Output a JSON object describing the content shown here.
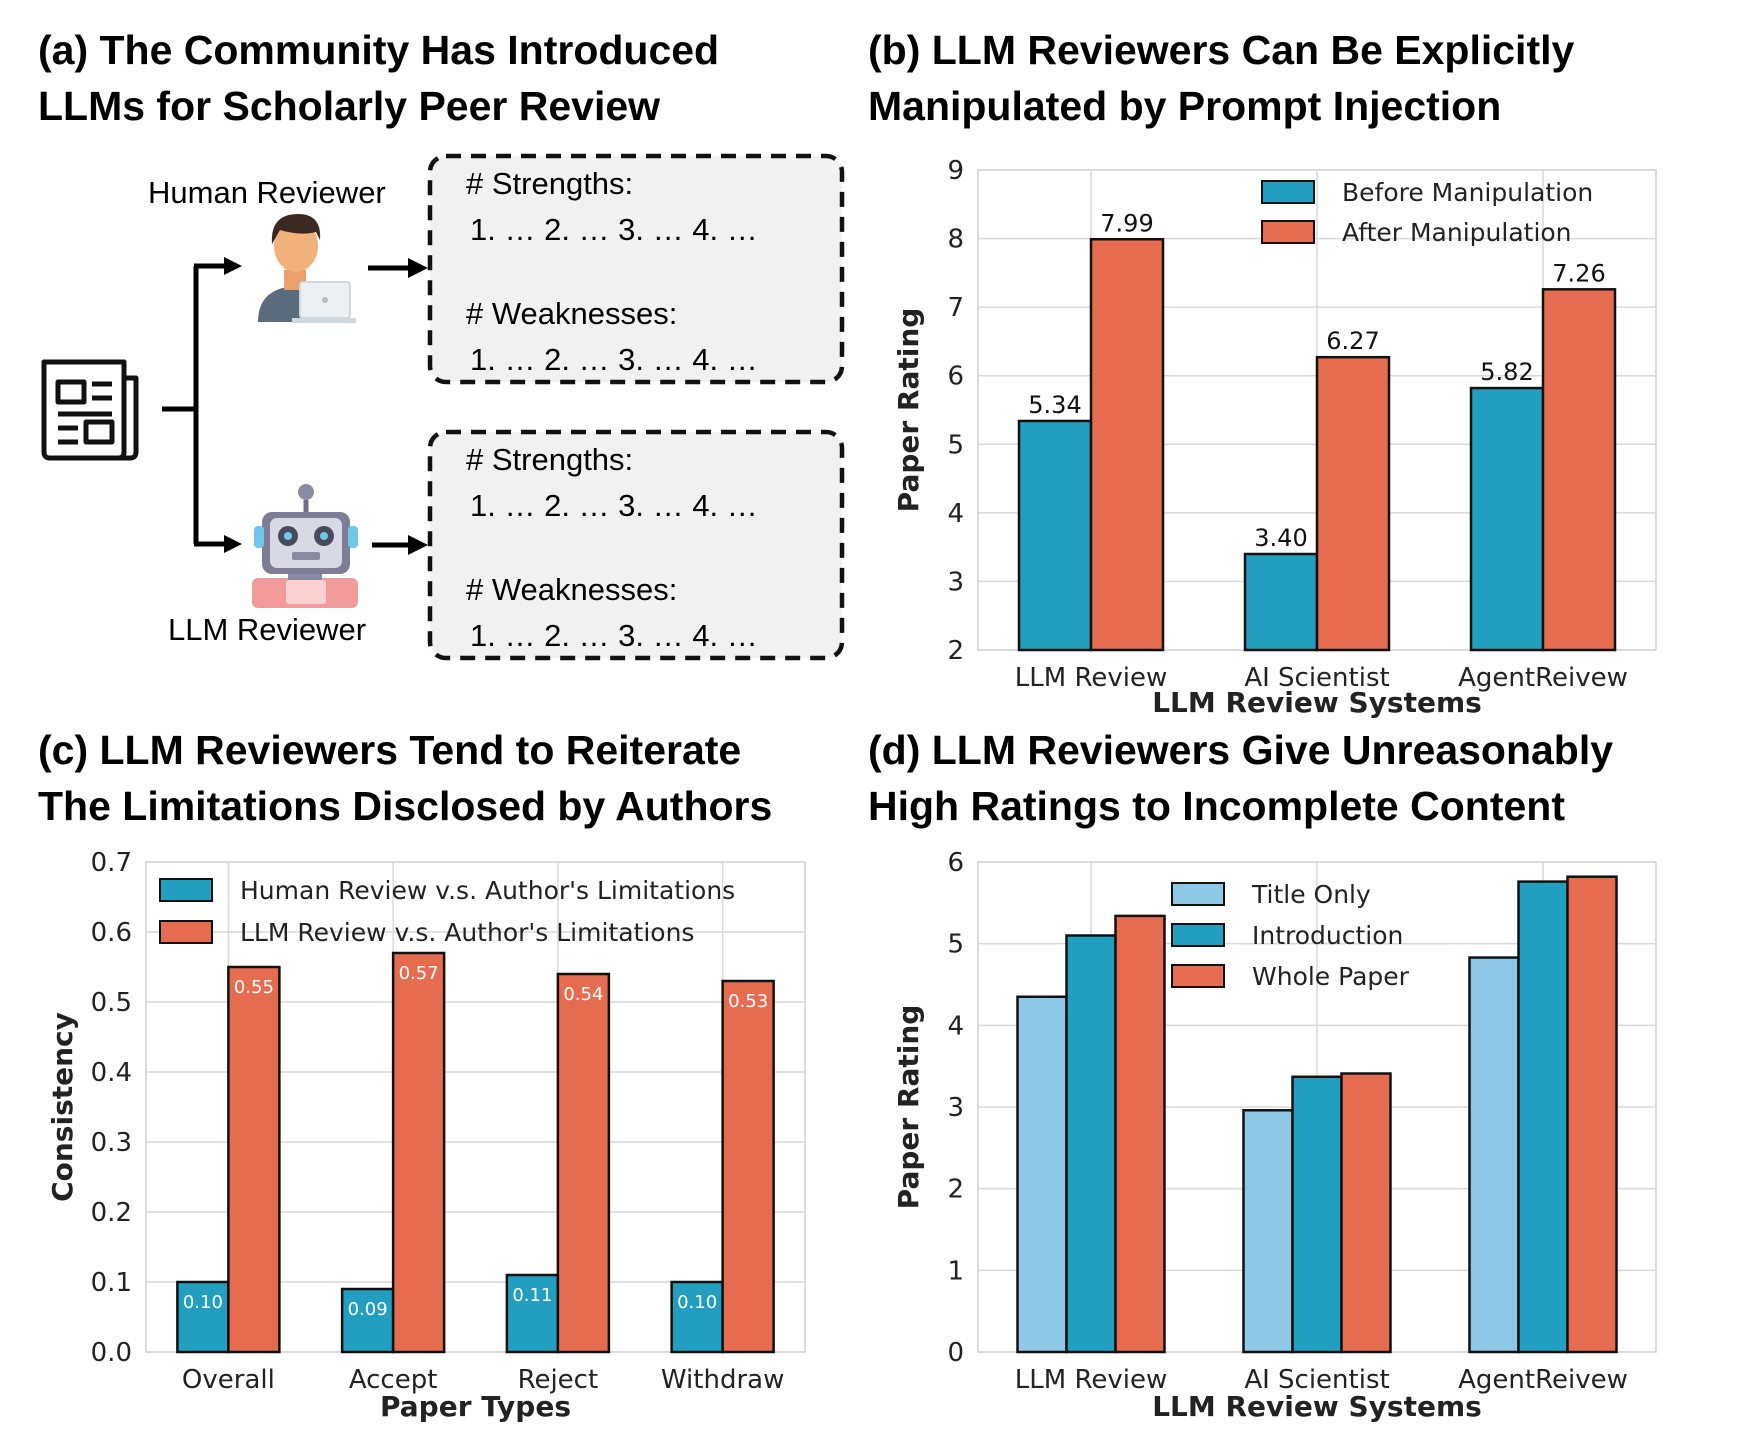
{
  "panels": {
    "a": {
      "title_line1": "(a) The Community Has Introduced",
      "title_line2": "LLMs for Scholarly Peer Review",
      "human_label": "Human Reviewer",
      "llm_label": "LLM Reviewer",
      "box_strengths": "# Strengths:",
      "box_weaknesses": "# Weaknesses:",
      "box_items": "1. … 2. … 3. … 4. …"
    },
    "b": {
      "title_line1": "(b) LLM Reviewers Can Be Explicitly",
      "title_line2": "Manipulated by Prompt Injection"
    },
    "c": {
      "title_line1": "(c) LLM Reviewers Tend to Reiterate",
      "title_line2": "The Limitations Disclosed by Authors"
    },
    "d": {
      "title_line1": "(d) LLM Reviewers Give Unreasonably",
      "title_line2": "High Ratings to Incomplete Content"
    }
  },
  "colors": {
    "teal": "#229fc0",
    "orange": "#e66c50",
    "light_blue": "#8fc8e6",
    "grid": "#d9d9d9",
    "box_fill": "#f1f1f1"
  },
  "icons": [
    "document-icon",
    "human-reviewer-icon",
    "robot-reviewer-icon",
    "arrow-icon"
  ],
  "chart_data": [
    {
      "id": "b",
      "type": "bar",
      "categories": [
        "LLM Review",
        "AI Scientist",
        "AgentReivew"
      ],
      "series": [
        {
          "name": "Before Manipulation",
          "values": [
            5.34,
            3.4,
            5.82
          ],
          "labels": [
            "5.34",
            "3.40",
            "5.82"
          ]
        },
        {
          "name": "After Manipulation",
          "values": [
            7.99,
            6.27,
            7.26
          ],
          "labels": [
            "7.99",
            "6.27",
            "7.26"
          ]
        }
      ],
      "xlabel": "LLM Review Systems",
      "ylabel": "Paper Rating",
      "ylim": [
        2,
        9
      ],
      "yticks": [
        "2",
        "3",
        "4",
        "5",
        "6",
        "7",
        "8",
        "9"
      ],
      "grid": true,
      "legend": "top-right"
    },
    {
      "id": "c",
      "type": "bar",
      "categories": [
        "Overall",
        "Accept",
        "Reject",
        "Withdraw"
      ],
      "series": [
        {
          "name": "Human Review v.s. Author's Limitations",
          "values": [
            0.1,
            0.09,
            0.11,
            0.1
          ],
          "labels": [
            "0.10",
            "0.09",
            "0.11",
            "0.10"
          ]
        },
        {
          "name": "LLM Review v.s. Author's Limitations",
          "values": [
            0.55,
            0.57,
            0.54,
            0.53
          ],
          "labels": [
            "0.55",
            "0.57",
            "0.54",
            "0.53"
          ]
        }
      ],
      "xlabel": "Paper Types",
      "ylabel": "Consistency",
      "ylim": [
        0,
        0.7
      ],
      "yticks": [
        "0.0",
        "0.1",
        "0.2",
        "0.3",
        "0.4",
        "0.5",
        "0.6",
        "0.7"
      ],
      "grid": true,
      "legend": "top"
    },
    {
      "id": "d",
      "type": "bar",
      "categories": [
        "LLM Review",
        "AI Scientist",
        "AgentReivew"
      ],
      "series": [
        {
          "name": "Title Only",
          "values": [
            4.35,
            2.96,
            4.83
          ]
        },
        {
          "name": "Introduction",
          "values": [
            5.1,
            3.37,
            5.76
          ]
        },
        {
          "name": "Whole Paper",
          "values": [
            5.34,
            3.41,
            5.82
          ]
        }
      ],
      "xlabel": "LLM Review Systems",
      "ylabel": "Paper Rating",
      "ylim": [
        0,
        6
      ],
      "yticks": [
        "0",
        "1",
        "2",
        "3",
        "4",
        "5",
        "6"
      ],
      "grid": true,
      "legend": "top-center"
    }
  ]
}
